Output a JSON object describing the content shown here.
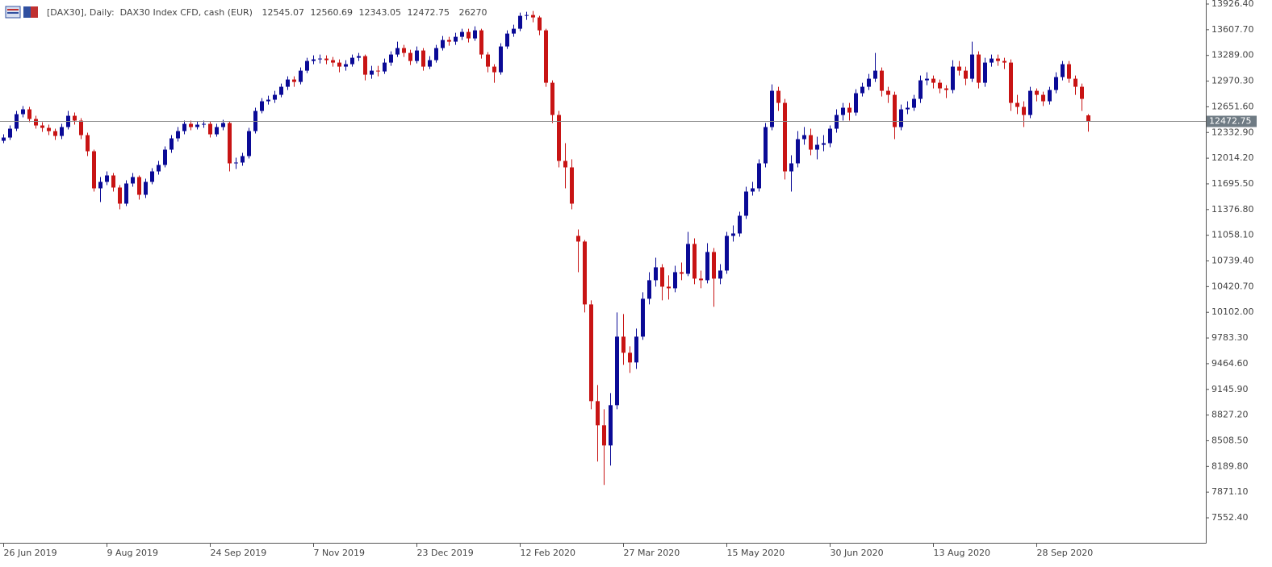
{
  "chart_data": {
    "type": "candlestick",
    "title": "[DAX30], Daily:  DAX30 Index CFD, cash (EUR)",
    "volume": 26270,
    "up_color": "#0a0a96",
    "down_color": "#c81414",
    "price_line": true,
    "xlim": [
      -0.5,
      186.25
    ],
    "ylim": [
      7242.4,
      13976.4
    ],
    "yticks": [
      {
        "value": 13926.4,
        "label": "13926.40"
      },
      {
        "value": 13607.7,
        "label": "13607.70"
      },
      {
        "value": 13289,
        "label": "13289.00"
      },
      {
        "value": 12970.3,
        "label": "12970.30"
      },
      {
        "value": 12651.6,
        "label": "12651.60"
      },
      {
        "value": 12332.9,
        "label": "12332.90"
      },
      {
        "value": 12014.2,
        "label": "12014.20"
      },
      {
        "value": 11695.5,
        "label": "11695.50"
      },
      {
        "value": 11376.8,
        "label": "11376.80"
      },
      {
        "value": 11058.1,
        "label": "11058.10"
      },
      {
        "value": 10739.4,
        "label": "10739.40"
      },
      {
        "value": 10420.7,
        "label": "10420.70"
      },
      {
        "value": 10102,
        "label": "10102.00"
      },
      {
        "value": 9783.3,
        "label": "9783.30"
      },
      {
        "value": 9464.6,
        "label": "9464.60"
      },
      {
        "value": 9145.9,
        "label": "9145.90"
      },
      {
        "value": 8827.2,
        "label": "8827.20"
      },
      {
        "value": 8508.5,
        "label": "8508.50"
      },
      {
        "value": 8189.8,
        "label": "8189.80"
      },
      {
        "value": 7871.1,
        "label": "7871.10"
      },
      {
        "value": 7552.4,
        "label": "7552.40"
      }
    ],
    "xticks": [
      {
        "value": 0,
        "label": "26 Jun 2019"
      },
      {
        "value": 16,
        "label": "9 Aug 2019"
      },
      {
        "value": 32,
        "label": "24 Sep 2019"
      },
      {
        "value": 48,
        "label": "7 Nov 2019"
      },
      {
        "value": 64,
        "label": "23 Dec 2019"
      },
      {
        "value": 80,
        "label": "12 Feb 2020"
      },
      {
        "value": 96,
        "label": "27 Mar 2020"
      },
      {
        "value": 112,
        "label": "15 May 2020"
      },
      {
        "value": 128,
        "label": "30 Jun 2020"
      },
      {
        "value": 144,
        "label": "13 Aug 2020"
      },
      {
        "value": 160,
        "label": "28 Sep 2020"
      }
    ],
    "candles": [
      [
        12230,
        12310,
        12200,
        12270
      ],
      [
        12270,
        12420,
        12240,
        12380
      ],
      [
        12380,
        12600,
        12350,
        12560
      ],
      [
        12560,
        12660,
        12520,
        12620
      ],
      [
        12620,
        12650,
        12460,
        12500
      ],
      [
        12500,
        12540,
        12380,
        12420
      ],
      [
        12420,
        12460,
        12340,
        12390
      ],
      [
        12390,
        12430,
        12300,
        12350
      ],
      [
        12350,
        12380,
        12240,
        12290
      ],
      [
        12290,
        12440,
        12250,
        12400
      ],
      [
        12400,
        12600,
        12370,
        12540
      ],
      [
        12540,
        12580,
        12430,
        12480
      ],
      [
        12480,
        12510,
        12250,
        12300
      ],
      [
        12300,
        12330,
        12040,
        12100
      ],
      [
        12100,
        12120,
        11600,
        11640
      ],
      [
        11640,
        11780,
        11470,
        11720
      ],
      [
        11720,
        11850,
        11680,
        11800
      ],
      [
        11800,
        11830,
        11600,
        11650
      ],
      [
        11650,
        11680,
        11380,
        11450
      ],
      [
        11450,
        11740,
        11420,
        11700
      ],
      [
        11700,
        11830,
        11660,
        11780
      ],
      [
        11780,
        11800,
        11500,
        11560
      ],
      [
        11560,
        11760,
        11520,
        11720
      ],
      [
        11720,
        11890,
        11690,
        11850
      ],
      [
        11850,
        11980,
        11810,
        11930
      ],
      [
        11930,
        12160,
        11900,
        12120
      ],
      [
        12120,
        12300,
        12080,
        12260
      ],
      [
        12260,
        12400,
        12220,
        12350
      ],
      [
        12350,
        12480,
        12310,
        12440
      ],
      [
        12440,
        12480,
        12360,
        12400
      ],
      [
        12400,
        12470,
        12370,
        12430
      ],
      [
        12430,
        12480,
        12390,
        12440
      ],
      [
        12440,
        12470,
        12270,
        12310
      ],
      [
        12310,
        12440,
        12280,
        12400
      ],
      [
        12400,
        12490,
        12360,
        12450
      ],
      [
        12450,
        12470,
        11850,
        11950
      ],
      [
        11950,
        12020,
        11880,
        11960
      ],
      [
        11960,
        12080,
        11920,
        12040
      ],
      [
        12040,
        12390,
        12010,
        12350
      ],
      [
        12350,
        12640,
        12320,
        12600
      ],
      [
        12600,
        12760,
        12570,
        12720
      ],
      [
        12720,
        12790,
        12680,
        12740
      ],
      [
        12740,
        12850,
        12700,
        12800
      ],
      [
        12800,
        12940,
        12770,
        12900
      ],
      [
        12900,
        13030,
        12860,
        12990
      ],
      [
        12990,
        13030,
        12900,
        12960
      ],
      [
        12960,
        13140,
        12930,
        13100
      ],
      [
        13100,
        13260,
        13070,
        13220
      ],
      [
        13220,
        13290,
        13180,
        13240
      ],
      [
        13240,
        13300,
        13190,
        13250
      ],
      [
        13250,
        13290,
        13180,
        13230
      ],
      [
        13230,
        13270,
        13150,
        13200
      ],
      [
        13200,
        13240,
        13080,
        13150
      ],
      [
        13150,
        13230,
        13100,
        13180
      ],
      [
        13180,
        13300,
        13150,
        13260
      ],
      [
        13260,
        13320,
        13220,
        13280
      ],
      [
        13280,
        13300,
        12980,
        13050
      ],
      [
        13050,
        13160,
        13000,
        13100
      ],
      [
        13100,
        13160,
        13030,
        13090
      ],
      [
        13090,
        13250,
        13060,
        13200
      ],
      [
        13200,
        13340,
        13160,
        13300
      ],
      [
        13300,
        13460,
        13270,
        13380
      ],
      [
        13380,
        13420,
        13270,
        13320
      ],
      [
        13320,
        13360,
        13170,
        13220
      ],
      [
        13220,
        13400,
        13190,
        13350
      ],
      [
        13350,
        13380,
        13100,
        13150
      ],
      [
        13150,
        13280,
        13120,
        13230
      ],
      [
        13230,
        13420,
        13200,
        13380
      ],
      [
        13380,
        13530,
        13350,
        13480
      ],
      [
        13480,
        13520,
        13410,
        13460
      ],
      [
        13460,
        13570,
        13420,
        13520
      ],
      [
        13520,
        13620,
        13480,
        13580
      ],
      [
        13580,
        13620,
        13450,
        13500
      ],
      [
        13500,
        13650,
        13470,
        13600
      ],
      [
        13600,
        13620,
        13250,
        13300
      ],
      [
        13300,
        13330,
        13080,
        13150
      ],
      [
        13150,
        13180,
        12950,
        13080
      ],
      [
        13080,
        13440,
        13050,
        13400
      ],
      [
        13400,
        13600,
        13370,
        13560
      ],
      [
        13560,
        13670,
        13520,
        13620
      ],
      [
        13620,
        13820,
        13590,
        13780
      ],
      [
        13780,
        13830,
        13730,
        13790
      ],
      [
        13790,
        13840,
        13700,
        13760
      ],
      [
        13760,
        13780,
        13540,
        13600
      ],
      [
        13600,
        13620,
        12900,
        12950
      ],
      [
        12950,
        12980,
        12450,
        12550
      ],
      [
        12550,
        12600,
        11900,
        11980
      ],
      [
        11980,
        12200,
        11640,
        11900
      ],
      [
        11900,
        12000,
        11380,
        11450
      ],
      [
        11050,
        11130,
        10600,
        10980
      ],
      [
        10980,
        11000,
        10100,
        10200
      ],
      [
        10200,
        10250,
        8900,
        9000
      ],
      [
        9000,
        9200,
        8250,
        8700
      ],
      [
        8700,
        8900,
        7960,
        8450
      ],
      [
        8450,
        9100,
        8200,
        8950
      ],
      [
        8950,
        10100,
        8900,
        9800
      ],
      [
        9800,
        10080,
        9450,
        9600
      ],
      [
        9600,
        9680,
        9350,
        9480
      ],
      [
        9480,
        9900,
        9400,
        9800
      ],
      [
        9800,
        10350,
        9760,
        10270
      ],
      [
        10270,
        10600,
        10200,
        10500
      ],
      [
        10500,
        10780,
        10420,
        10660
      ],
      [
        10660,
        10700,
        10250,
        10420
      ],
      [
        10420,
        10560,
        10260,
        10400
      ],
      [
        10400,
        10680,
        10350,
        10600
      ],
      [
        10600,
        10720,
        10500,
        10580
      ],
      [
        10580,
        11100,
        10550,
        10950
      ],
      [
        10950,
        11020,
        10450,
        10520
      ],
      [
        10520,
        10620,
        10400,
        10500
      ],
      [
        10500,
        10960,
        10460,
        10850
      ],
      [
        10850,
        10900,
        10170,
        10520
      ],
      [
        10520,
        10700,
        10450,
        10620
      ],
      [
        10620,
        11100,
        10580,
        11050
      ],
      [
        11050,
        11180,
        10980,
        11080
      ],
      [
        11080,
        11350,
        11040,
        11300
      ],
      [
        11300,
        11660,
        11260,
        11600
      ],
      [
        11600,
        11720,
        11550,
        11640
      ],
      [
        11640,
        12000,
        11600,
        11950
      ],
      [
        11950,
        12450,
        11900,
        12400
      ],
      [
        12400,
        12930,
        12360,
        12850
      ],
      [
        12850,
        12900,
        12600,
        12700
      ],
      [
        12700,
        12750,
        11750,
        11850
      ],
      [
        11850,
        12050,
        11600,
        11950
      ],
      [
        11950,
        12350,
        11900,
        12250
      ],
      [
        12250,
        12400,
        12180,
        12300
      ],
      [
        12300,
        12380,
        12050,
        12120
      ],
      [
        12120,
        12280,
        12000,
        12180
      ],
      [
        12180,
        12300,
        12100,
        12200
      ],
      [
        12200,
        12420,
        12150,
        12380
      ],
      [
        12380,
        12620,
        12330,
        12550
      ],
      [
        12550,
        12700,
        12480,
        12640
      ],
      [
        12640,
        12700,
        12480,
        12580
      ],
      [
        12580,
        12870,
        12540,
        12820
      ],
      [
        12820,
        12950,
        12780,
        12900
      ],
      [
        12900,
        13060,
        12860,
        13000
      ],
      [
        13000,
        13320,
        12960,
        13100
      ],
      [
        13100,
        13140,
        12780,
        12850
      ],
      [
        12850,
        12900,
        12700,
        12800
      ],
      [
        12800,
        12840,
        12250,
        12400
      ],
      [
        12400,
        12680,
        12360,
        12620
      ],
      [
        12620,
        12720,
        12560,
        12640
      ],
      [
        12640,
        12800,
        12600,
        12750
      ],
      [
        12750,
        13040,
        12700,
        12980
      ],
      [
        12980,
        13080,
        12920,
        13000
      ],
      [
        13000,
        13040,
        12880,
        12950
      ],
      [
        12950,
        12990,
        12820,
        12880
      ],
      [
        12880,
        12920,
        12760,
        12860
      ],
      [
        12860,
        13230,
        12820,
        13150
      ],
      [
        13150,
        13220,
        13040,
        13100
      ],
      [
        13100,
        13150,
        12920,
        13000
      ],
      [
        13000,
        13460,
        12960,
        13300
      ],
      [
        13300,
        13340,
        12880,
        12950
      ],
      [
        12950,
        13260,
        12900,
        13200
      ],
      [
        13200,
        13300,
        13150,
        13250
      ],
      [
        13250,
        13300,
        13160,
        13220
      ],
      [
        13220,
        13260,
        13120,
        13200
      ],
      [
        13200,
        13240,
        12600,
        12700
      ],
      [
        12700,
        12800,
        12560,
        12650
      ],
      [
        12650,
        12720,
        12400,
        12550
      ],
      [
        12550,
        12900,
        12510,
        12850
      ],
      [
        12850,
        12880,
        12720,
        12800
      ],
      [
        12800,
        12840,
        12660,
        12720
      ],
      [
        12720,
        12900,
        12680,
        12860
      ],
      [
        12860,
        13080,
        12820,
        13020
      ],
      [
        13020,
        13220,
        12980,
        13180
      ],
      [
        13180,
        13220,
        12950,
        13000
      ],
      [
        13000,
        13040,
        12800,
        12900
      ],
      [
        12900,
        12940,
        12600,
        12750
      ],
      [
        12545.07,
        12560.69,
        12343.05,
        12472.75
      ]
    ]
  }
}
